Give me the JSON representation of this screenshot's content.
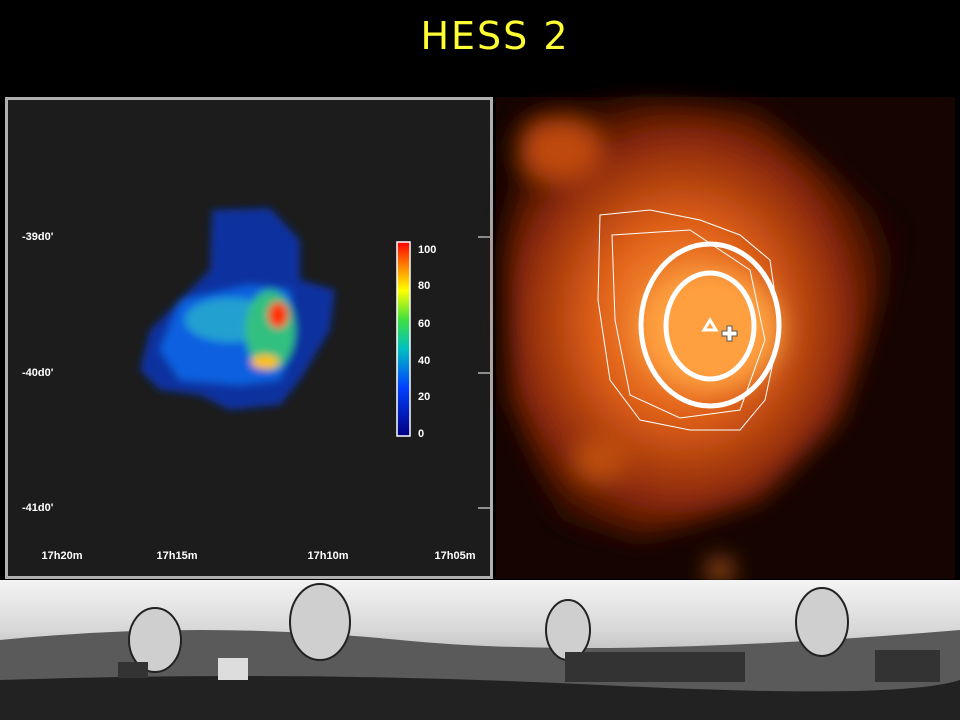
{
  "title": "HESS 2",
  "left_panel": {
    "y_labels": [
      "-39d0'",
      "-40d0'",
      "-41d0'"
    ],
    "x_labels": [
      "17h20m",
      "17h15m",
      "17h10m",
      "17h05m"
    ],
    "colorbar": {
      "ticks": [
        100,
        80,
        60,
        40,
        20,
        0
      ]
    }
  }
}
